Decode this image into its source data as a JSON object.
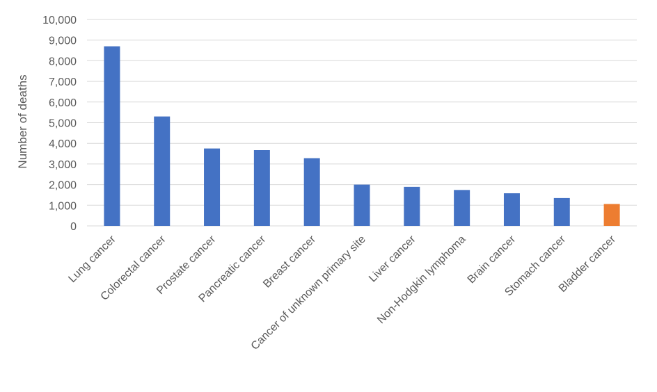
{
  "chart_data": {
    "type": "bar",
    "title": "",
    "xlabel": "",
    "ylabel": "Number of deaths",
    "ylim": [
      0,
      10000
    ],
    "yticks": [
      0,
      1000,
      2000,
      3000,
      4000,
      5000,
      6000,
      7000,
      8000,
      9000,
      10000
    ],
    "ytick_labels": [
      "0",
      "1,000",
      "2,000",
      "3,000",
      "4,000",
      "5,000",
      "6,000",
      "7,000",
      "8,000",
      "9,000",
      "10,000"
    ],
    "grid": true,
    "legend": "none",
    "categories": [
      "Lung cancer",
      "Colorectal cancer",
      "Prostate cancer",
      "Pancreatic cancer",
      "Breast cancer",
      "Cancer of unknown primary site",
      "Liver cancer",
      "Non-Hodgkin lymphoma",
      "Brain cancer",
      "Stomach cancer",
      "Bladder cancer"
    ],
    "values": [
      8700,
      5300,
      3750,
      3670,
      3280,
      2000,
      1890,
      1740,
      1580,
      1350,
      1060
    ],
    "bar_colors": [
      "#4472c4",
      "#4472c4",
      "#4472c4",
      "#4472c4",
      "#4472c4",
      "#4472c4",
      "#4472c4",
      "#4472c4",
      "#4472c4",
      "#4472c4",
      "#ed7d31"
    ]
  }
}
